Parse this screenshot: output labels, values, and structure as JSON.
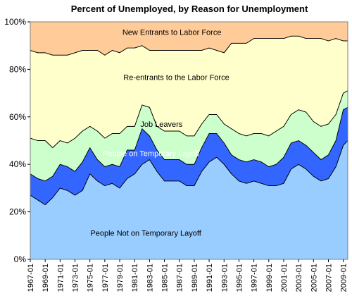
{
  "chart_data": {
    "type": "area",
    "stacked": true,
    "percent": true,
    "title": "Percent of Unemployed, by Reason for Unemployment",
    "ylim": [
      0,
      100
    ],
    "yticks": [
      "0%",
      "20%",
      "40%",
      "60%",
      "80%",
      "100%"
    ],
    "xticks": [
      "1967-01",
      "1969-01",
      "1971-01",
      "1973-01",
      "1975-01",
      "1977-01",
      "1979-01",
      "1981-01",
      "1983-01",
      "1985-01",
      "1987-01",
      "1989-01",
      "1991-01",
      "1993-01",
      "1995-01",
      "1997-01",
      "1999-01",
      "2001-01",
      "2003-01",
      "2005-01",
      "2007-01",
      "2009-01"
    ],
    "x": [
      1967,
      1968,
      1969,
      1970,
      1971,
      1972,
      1973,
      1974,
      1975,
      1976,
      1977,
      1978,
      1979,
      1980,
      1981,
      1982,
      1983,
      1984,
      1985,
      1986,
      1987,
      1988,
      1989,
      1990,
      1991,
      1992,
      1993,
      1994,
      1995,
      1996,
      1997,
      1998,
      1999,
      2000,
      2001,
      2002,
      2003,
      2004,
      2005,
      2006,
      2007,
      2008,
      2009,
      2009.6
    ],
    "grid": false,
    "legend": "none",
    "series": [
      {
        "name": "People Not on Temporary Layoff",
        "color": "#99ccff",
        "values": [
          27,
          25,
          23,
          26,
          30,
          29,
          27,
          29,
          36,
          33,
          31,
          32,
          30,
          34,
          36,
          40,
          42,
          37,
          33,
          33,
          33,
          31,
          31,
          37,
          41,
          43,
          40,
          36,
          33,
          32,
          33,
          32,
          31,
          31,
          32,
          38,
          40,
          38,
          35,
          33,
          34,
          39,
          48,
          50
        ]
      },
      {
        "name": "People on Temporary Layoff",
        "color": "#3366ff",
        "values": [
          9,
          9,
          10,
          9,
          10,
          10,
          10,
          12,
          11,
          9,
          8,
          8,
          9,
          12,
          10,
          15,
          10,
          9,
          9,
          9,
          9,
          9,
          9,
          10,
          12,
          10,
          9,
          8,
          9,
          9,
          9,
          9,
          8,
          9,
          11,
          11,
          10,
          10,
          10,
          9,
          10,
          11,
          15,
          14
        ]
      },
      {
        "name": "Job Leavers",
        "color": "#ccffcc",
        "values": [
          15,
          16,
          17,
          12,
          10,
          10,
          14,
          13,
          9,
          12,
          12,
          13,
          14,
          10,
          10,
          10,
          12,
          10,
          12,
          12,
          12,
          12,
          12,
          10,
          8,
          8,
          8,
          11,
          11,
          11,
          11,
          12,
          13,
          14,
          13,
          12,
          13,
          14,
          13,
          14,
          13,
          11,
          7,
          7
        ]
      },
      {
        "name": "Re-entrants to the Labor Force",
        "color": "#ffffcc",
        "values": [
          37,
          37,
          37,
          39,
          36,
          37,
          36,
          34,
          32,
          34,
          35,
          35,
          34,
          33,
          33,
          25,
          24,
          32,
          34,
          34,
          34,
          36,
          36,
          31,
          28,
          27,
          30,
          36,
          38,
          39,
          40,
          40,
          41,
          39,
          37,
          33,
          31,
          31,
          35,
          37,
          35,
          32,
          22,
          21
        ]
      },
      {
        "name": "New Entrants to Labor Force",
        "color": "#ffcc99",
        "values": [
          12,
          13,
          13,
          14,
          14,
          14,
          13,
          12,
          12,
          12,
          14,
          12,
          13,
          11,
          11,
          10,
          12,
          12,
          12,
          12,
          12,
          12,
          12,
          12,
          11,
          12,
          13,
          9,
          9,
          9,
          7,
          7,
          7,
          7,
          7,
          6,
          6,
          7,
          7,
          7,
          8,
          7,
          8,
          8
        ]
      }
    ]
  }
}
